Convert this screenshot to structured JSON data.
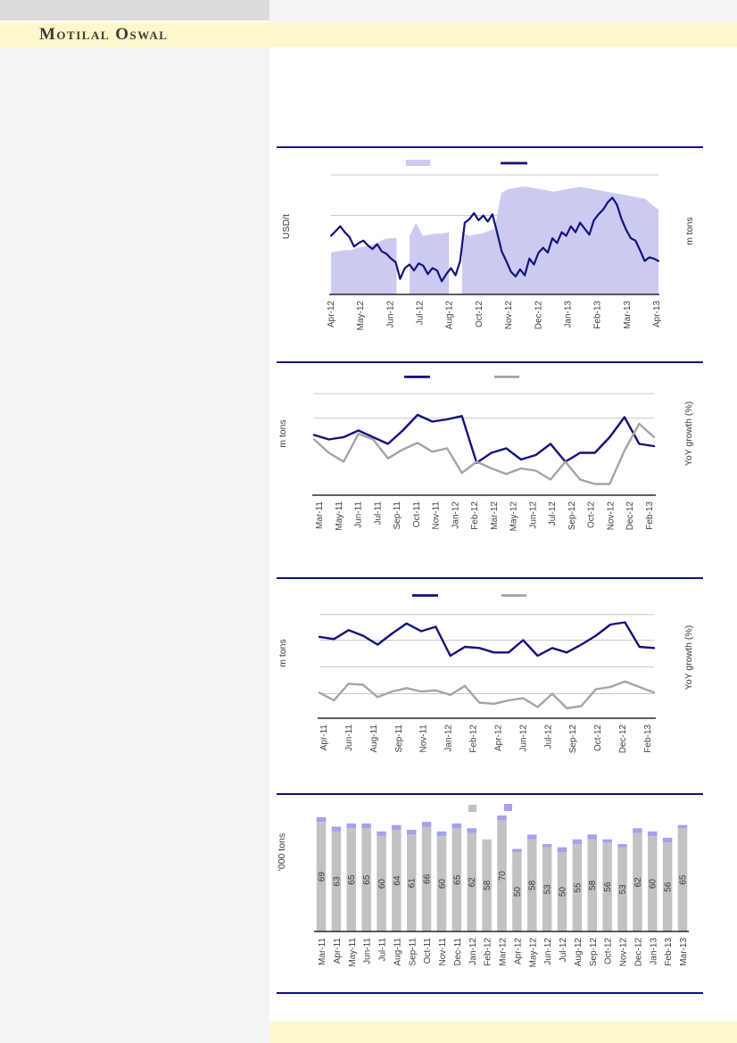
{
  "brand": "Motilal Oswal",
  "colors": {
    "navy": "#12127c",
    "area_fill": "#cbcbf2",
    "purple_cap": "#a2a2ee",
    "gray_line": "#a5a5a5",
    "bar_gray": "#c2c2c2",
    "gridline": "#c8c8c8",
    "axis": "#000000",
    "band_yellow": "#fdf7cc",
    "left_column_gray": "#f4f4f4",
    "header_gray_block": "#dbdbdb"
  },
  "chart_data": [
    {
      "type": "area",
      "title": "",
      "left_axis_label": "USD/t",
      "right_axis_label": "m tons",
      "legend_swatches": [
        "area-lavender",
        "line-navy"
      ],
      "x_labels": [
        "Apr-12",
        "May-12",
        "Jun-12",
        "Jul-12",
        "Aug-12",
        "Oct-12",
        "Nov-12",
        "Dec-12",
        "Jan-13",
        "Feb-13",
        "Mar-13",
        "Apr-13"
      ],
      "gridlines_pct": [
        100,
        66
      ],
      "area_series": {
        "name": "volume-area",
        "values_pct": [
          35,
          36,
          37,
          37,
          39,
          40,
          41,
          43,
          46,
          47,
          47,
          null,
          49,
          60,
          49,
          50,
          51,
          51,
          52,
          null,
          52,
          49,
          50,
          51,
          53,
          55,
          85,
          88,
          89,
          90,
          90,
          89,
          88,
          87,
          86,
          87,
          88,
          89,
          90,
          89,
          88,
          87,
          86,
          85,
          84,
          83,
          82,
          81,
          80,
          75,
          71
        ]
      },
      "line_series": {
        "name": "price-line",
        "values_pct": [
          49,
          53,
          57,
          52,
          48,
          40,
          43,
          45,
          41,
          38,
          42,
          36,
          34,
          30,
          27,
          13,
          22,
          25,
          20,
          26,
          24,
          17,
          22,
          20,
          11,
          17,
          22,
          16,
          28,
          60,
          63,
          68,
          62,
          66,
          61,
          67,
          52,
          36,
          28,
          19,
          15,
          21,
          16,
          30,
          25,
          35,
          39,
          35,
          47,
          43,
          52,
          49,
          57,
          52,
          60,
          55,
          50,
          62,
          67,
          71,
          77,
          81,
          75,
          63,
          54,
          47,
          45,
          37,
          28,
          31,
          30,
          28
        ]
      }
    },
    {
      "type": "line",
      "title": "",
      "left_axis_label": "m tons",
      "right_axis_label": "YoY growth (%)",
      "legend_swatches": [
        "line-navy",
        "line-gray"
      ],
      "x_labels": [
        "Mar-11",
        "May-11",
        "Jun-11",
        "Jul-11",
        "Sep-11",
        "Oct-11",
        "Nov-11",
        "Jan-12",
        "Feb-12",
        "Mar-12",
        "May-12",
        "Jun-12",
        "Jul-12",
        "Sep-12",
        "Oct-12",
        "Nov-12",
        "Dec-12",
        "Feb-13"
      ],
      "gridlines_pct": [
        91,
        69
      ],
      "series": [
        {
          "name": "navy-line",
          "values_pct": [
            54,
            50,
            52,
            58,
            52,
            46,
            58,
            72,
            66,
            68,
            71,
            29,
            38,
            42,
            32,
            36,
            46,
            30,
            38,
            38,
            52,
            70,
            46,
            44
          ]
        },
        {
          "name": "gray-line",
          "values_pct": [
            50,
            38,
            30,
            55,
            50,
            33,
            41,
            47,
            39,
            42,
            20,
            30,
            24,
            19,
            24,
            22,
            14,
            30,
            14,
            10,
            10,
            40,
            64,
            52
          ]
        }
      ]
    },
    {
      "type": "line",
      "title": "",
      "left_axis_label": "m tons",
      "right_axis_label": "YoY growth (%)",
      "legend_swatches": [
        "line-navy",
        "line-gray"
      ],
      "x_labels": [
        "Apr-11",
        "Jun-11",
        "Aug-11",
        "Sep-11",
        "Nov-11",
        "Jan-12",
        "Feb-12",
        "Apr-12",
        "Jun-12",
        "Jul-12",
        "Sep-12",
        "Oct-12",
        "Dec-12",
        "Feb-13"
      ],
      "gridlines_pct": [
        93,
        70,
        46,
        22
      ],
      "series": [
        {
          "name": "navy-line",
          "values_pct": [
            73,
            71,
            79,
            74,
            66,
            76,
            85,
            78,
            82,
            56,
            64,
            63,
            59,
            59,
            70,
            56,
            63,
            59,
            66,
            74,
            84,
            86,
            64,
            63
          ]
        },
        {
          "name": "gray-line",
          "values_pct": [
            23,
            16,
            31,
            30,
            19,
            24,
            27,
            24,
            25,
            21,
            29,
            14,
            13,
            16,
            18,
            10,
            22,
            9,
            11,
            26,
            28,
            33,
            28,
            23
          ]
        }
      ]
    },
    {
      "type": "bar",
      "title": "",
      "left_axis_label": "'000 tons",
      "legend_swatches": [
        "bar-gray",
        "bar-purple-cap"
      ],
      "categories": [
        "Mar-11",
        "Apr-11",
        "May-11",
        "Jun-11",
        "Jul-11",
        "Aug-11",
        "Sep-11",
        "Oct-11",
        "Nov-11",
        "Dec-11",
        "Jan-12",
        "Feb-12",
        "Mar-12",
        "Apr-12",
        "May-12",
        "Jun-12",
        "Jul-12",
        "Aug-12",
        "Sep-12",
        "Oct-12",
        "Nov-12",
        "Dec-12",
        "Jan-13",
        "Feb-13",
        "Mar-13"
      ],
      "values": [
        69,
        63,
        65,
        65,
        60,
        64,
        61,
        66,
        60,
        65,
        62,
        58,
        70,
        50,
        58,
        53,
        50,
        55,
        58,
        56,
        53,
        62,
        60,
        56,
        65
      ],
      "cap_values": [
        3,
        3,
        3,
        3,
        3,
        3,
        3,
        3,
        3,
        3,
        3,
        0,
        3,
        2,
        3,
        2,
        3,
        3,
        3,
        2,
        2,
        3,
        3,
        3,
        2
      ]
    }
  ]
}
